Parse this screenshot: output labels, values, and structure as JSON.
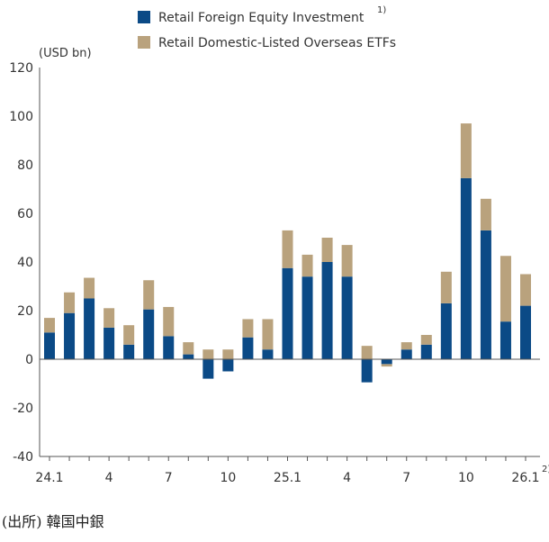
{
  "chart_data": {
    "type": "bar",
    "stacked": true,
    "y_unit": "(USD bn)",
    "ylim": [
      -40,
      120
    ],
    "yticks": [
      -40,
      -20,
      0,
      20,
      40,
      60,
      80,
      100,
      120
    ],
    "x_tick_labels": [
      {
        "index": 0,
        "label": "24.1"
      },
      {
        "index": 3,
        "label": "4"
      },
      {
        "index": 6,
        "label": "7"
      },
      {
        "index": 9,
        "label": "10"
      },
      {
        "index": 12,
        "label": "25.1"
      },
      {
        "index": 15,
        "label": "4"
      },
      {
        "index": 18,
        "label": "7"
      },
      {
        "index": 21,
        "label": "10"
      },
      {
        "index": 24,
        "label": "26.1",
        "sup": "2)"
      }
    ],
    "grid": false,
    "legend_position": "top",
    "series": [
      {
        "name": "Retail Foreign Equity Investment",
        "name_sup": "1)",
        "color": "#0b4a86",
        "values": [
          11,
          19,
          25,
          13,
          6,
          20.5,
          9.5,
          2,
          -8,
          -5,
          9,
          4,
          37.5,
          34,
          40,
          34,
          -9.5,
          -2,
          4,
          6,
          23,
          74.5,
          53,
          15.5,
          22
        ]
      },
      {
        "name": "Retail Domestic-Listed Overseas ETFs",
        "color": "#b9a27d",
        "values": [
          6,
          8.5,
          8.5,
          8,
          8,
          12,
          12,
          5,
          4,
          4,
          7.5,
          12.5,
          15.5,
          9,
          10,
          13,
          5.5,
          -1,
          3,
          4,
          13,
          22.5,
          13,
          27,
          13
        ]
      }
    ]
  },
  "source": "(出所) 韓国中銀"
}
